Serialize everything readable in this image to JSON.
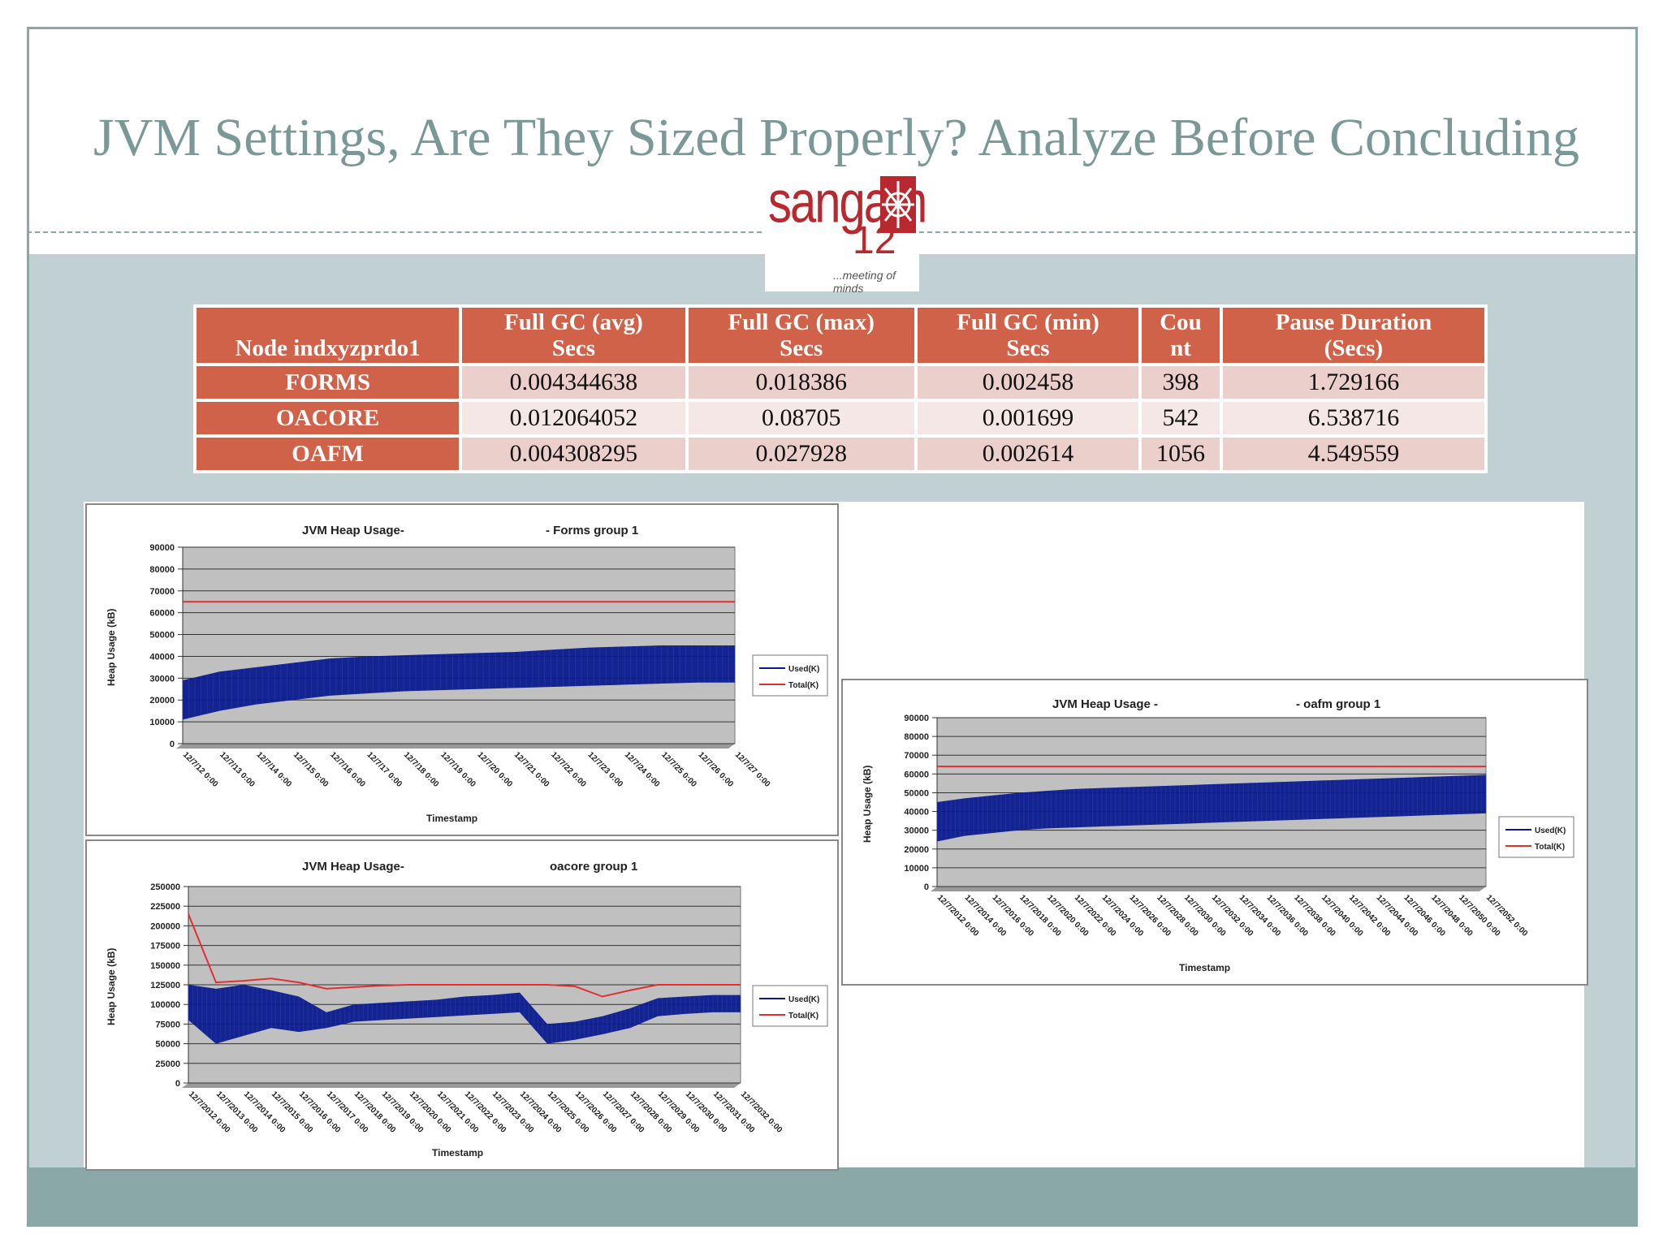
{
  "slide": {
    "title": "JVM Settings, Are They Sized Properly? Analyze Before Concluding"
  },
  "logo": {
    "word": "sangam",
    "number": "12",
    "tagline": "...meeting of minds"
  },
  "gc_table": {
    "headers": [
      "Node indxyzprdo1",
      "Full GC (avg) Secs",
      "Full GC (max) Secs",
      "Full GC (min) Secs",
      "Cou nt",
      "Pause Duration (Secs)"
    ],
    "header_lines": [
      [
        "Node indxyzprdo1"
      ],
      [
        "Full GC (avg)",
        "Secs"
      ],
      [
        "Full GC (max)",
        "Secs"
      ],
      [
        "Full GC (min)",
        "Secs"
      ],
      [
        "Cou",
        "nt"
      ],
      [
        "Pause Duration",
        "(Secs)"
      ]
    ],
    "rows": [
      [
        "FORMS",
        "0.004344638",
        "0.018386",
        "0.002458",
        "398",
        "1.729166"
      ],
      [
        "OACORE",
        "0.012064052",
        "0.08705",
        "0.001699",
        "542",
        "6.538716"
      ],
      [
        "OAFM",
        "0.004308295",
        "0.027928",
        "0.002614",
        "1056",
        "4.549559"
      ]
    ]
  },
  "colors": {
    "used": "#0a1a8c",
    "total": "#e03030",
    "plot_bg": "#c0c0c0",
    "header": "#d0624a"
  },
  "chart_data": [
    {
      "type": "area",
      "title": "JVM Heap Usage-",
      "subtitle": "- Forms group 1",
      "xlabel": "Timestamp",
      "ylabel": "Heap Usage (kB)",
      "ylim": [
        0,
        90000
      ],
      "yticks": [
        "0",
        "10000",
        "20000",
        "30000",
        "40000",
        "50000",
        "60000",
        "70000",
        "80000",
        "90000"
      ],
      "xticks": [
        "12/7/12 0:00",
        "12/7/13 0:00",
        "12/7/14 0:00",
        "12/7/15 0:00",
        "12/7/16 0:00",
        "12/7/17 0:00",
        "12/7/18 0:00",
        "12/7/19 0:00",
        "12/7/20 0:00",
        "12/7/21 0:00",
        "12/7/22 0:00",
        "12/7/23 0:00",
        "12/7/24 0:00",
        "12/7/25 0:00",
        "12/7/26 0:00",
        "12/7/27 0:00"
      ],
      "legend": [
        "Used(K)",
        "Total(K)"
      ],
      "series": [
        {
          "name": "Used(K) max",
          "values": [
            29000,
            33000,
            35000,
            37000,
            39000,
            40000,
            40500,
            41000,
            41500,
            42000,
            43000,
            44000,
            44500,
            45000,
            45000,
            45000
          ]
        },
        {
          "name": "Used(K) min",
          "values": [
            11000,
            15000,
            18000,
            20000,
            22000,
            23000,
            24000,
            24500,
            25000,
            25500,
            26000,
            26500,
            27000,
            27500,
            28000,
            28000
          ]
        },
        {
          "name": "Total(K)",
          "values": [
            65000,
            65000,
            65000,
            65000,
            65000,
            65000,
            65000,
            65000,
            65000,
            65000,
            65000,
            65000,
            65000,
            65000,
            65000,
            65000
          ]
        }
      ]
    },
    {
      "type": "area",
      "title": "JVM Heap Usage-",
      "subtitle": "oacore group 1",
      "xlabel": "Timestamp",
      "ylabel": "Heap Usage (kB)",
      "ylim": [
        0,
        250000
      ],
      "yticks": [
        "0",
        "25000",
        "50000",
        "75000",
        "100000",
        "125000",
        "150000",
        "175000",
        "200000",
        "225000",
        "250000"
      ],
      "xticks": [
        "12/7/2012 0:00",
        "12/7/2013 0:00",
        "12/7/2014 0:00",
        "12/7/2015 0:00",
        "12/7/2016 0:00",
        "12/7/2017 0:00",
        "12/7/2018 0:00",
        "12/7/2019 0:00",
        "12/7/2020 0:00",
        "12/7/2021 0:00",
        "12/7/2022 0:00",
        "12/7/2023 0:00",
        "12/7/2024 0:00",
        "12/7/2025 0:00",
        "12/7/2026 0:00",
        "12/7/2027 0:00",
        "12/7/2028 0:00",
        "12/7/2029 0:00",
        "12/7/2030 0:00",
        "12/7/2031 0:00",
        "12/7/2032 0:00"
      ],
      "legend": [
        "Used(K)",
        "Total(K)"
      ],
      "series": [
        {
          "name": "Used(K) max",
          "values": [
            125000,
            120000,
            125000,
            118000,
            110000,
            90000,
            100000,
            102000,
            104000,
            106000,
            110000,
            112000,
            115000,
            75000,
            78000,
            85000,
            95000,
            108000,
            110000,
            112000,
            112000
          ]
        },
        {
          "name": "Used(K) min",
          "values": [
            80000,
            50000,
            60000,
            70000,
            65000,
            70000,
            78000,
            80000,
            82000,
            84000,
            86000,
            88000,
            90000,
            50000,
            55000,
            62000,
            70000,
            85000,
            88000,
            90000,
            90000
          ]
        },
        {
          "name": "Total(K)",
          "values": [
            215000,
            128000,
            130000,
            133000,
            128000,
            120000,
            122000,
            124000,
            125000,
            125000,
            125000,
            125000,
            125000,
            125000,
            123000,
            110000,
            118000,
            125000,
            125000,
            125000,
            125000
          ]
        }
      ]
    },
    {
      "type": "area",
      "title": "JVM Heap Usage -",
      "subtitle": "- oafm group 1",
      "xlabel": "Timestamp",
      "ylabel": "Heap Usage (kB)",
      "ylim": [
        0,
        90000
      ],
      "yticks": [
        "0",
        "10000",
        "20000",
        "30000",
        "40000",
        "50000",
        "60000",
        "70000",
        "80000",
        "90000"
      ],
      "xticks": [
        "12/7/2012 0:00",
        "12/7/2014 0:00",
        "12/7/2016 0:00",
        "12/7/2018 0:00",
        "12/7/2020 0:00",
        "12/7/2022 0:00",
        "12/7/2024 0:00",
        "12/7/2026 0:00",
        "12/7/2028 0:00",
        "12/7/2030 0:00",
        "12/7/2032 0:00",
        "12/7/2034 0:00",
        "12/7/2036 0:00",
        "12/7/2038 0:00",
        "12/7/2040 0:00",
        "12/7/2042 0:00",
        "12/7/2044 0:00",
        "12/7/2046 0:00",
        "12/7/2048 0:00",
        "12/7/2050 0:00",
        "12/7/2052 0:00"
      ],
      "legend": [
        "Used(K)",
        "Total(K)"
      ],
      "series": [
        {
          "name": "Used(K) max",
          "values": [
            45000,
            47000,
            48500,
            50000,
            51000,
            52000,
            52500,
            53000,
            53500,
            54000,
            54500,
            55000,
            55500,
            56000,
            56500,
            57000,
            57500,
            58000,
            58500,
            59000,
            59500
          ]
        },
        {
          "name": "Used(K) min",
          "values": [
            24000,
            27000,
            28500,
            30000,
            31000,
            31500,
            32000,
            32500,
            33000,
            33500,
            34000,
            34500,
            35000,
            35500,
            36000,
            36500,
            37000,
            37500,
            38000,
            38500,
            39000
          ]
        },
        {
          "name": "Total(K)",
          "values": [
            64000,
            64000,
            64000,
            64000,
            64000,
            64000,
            64000,
            64000,
            64000,
            64000,
            64000,
            64000,
            64000,
            64000,
            64000,
            64000,
            64000,
            64000,
            64000,
            64000,
            64000
          ]
        }
      ]
    }
  ]
}
